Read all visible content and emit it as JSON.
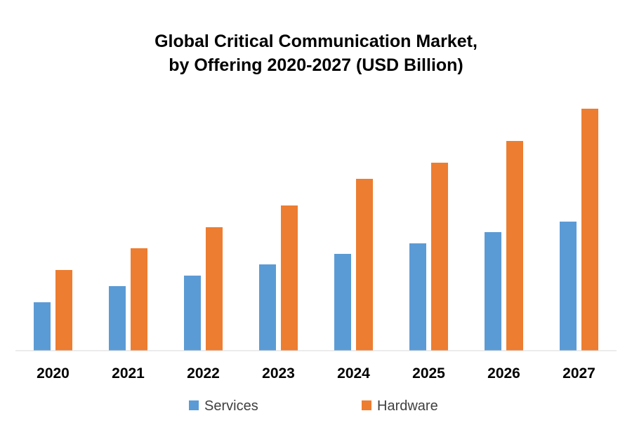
{
  "chart_data": {
    "type": "bar",
    "title_lines": [
      "Global Critical  Communication Market,",
      "by Offering 2020-2027 (USD Billion)"
    ],
    "categories": [
      "2020",
      "2021",
      "2022",
      "2023",
      "2024",
      "2025",
      "2026",
      "2027"
    ],
    "series": [
      {
        "name": "Services",
        "color": "#5B9BD5",
        "values": [
          6.9,
          9.2,
          10.7,
          12.3,
          13.8,
          15.3,
          16.9,
          18.4
        ]
      },
      {
        "name": "Hardware",
        "color": "#ED7D31",
        "values": [
          11.5,
          14.6,
          17.6,
          20.7,
          24.5,
          26.8,
          29.9,
          34.5
        ]
      }
    ],
    "ylim": [
      0,
      36
    ],
    "xlabel": "",
    "ylabel": "",
    "grid": false,
    "legend_position": "bottom"
  }
}
